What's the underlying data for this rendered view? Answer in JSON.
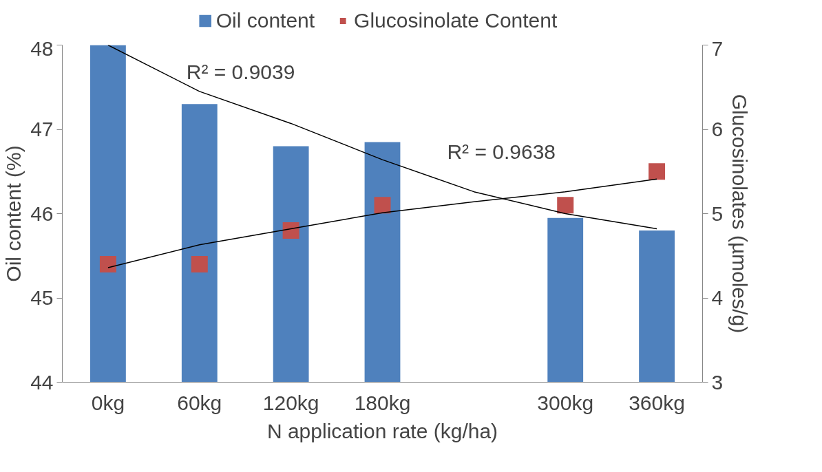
{
  "chart_data": {
    "type": "bar",
    "xlabel": "N application rate (kg/ha)",
    "ylabel": "Oil content (%)",
    "y2label": "Glucosinolates (µmoles/g)",
    "categories": [
      "0kg",
      "60kg",
      "120kg",
      "180kg",
      null,
      "300kg",
      "360kg"
    ],
    "series": [
      {
        "name": "Oil content",
        "color": "#4f81bd",
        "values": [
          48.0,
          47.3,
          46.8,
          46.85,
          null,
          45.95,
          45.8
        ]
      },
      {
        "name": "Glucosinolate Content",
        "type": "scatter",
        "axis": "y2",
        "marker": "square",
        "color": "#c0504d",
        "values": [
          4.4,
          4.4,
          4.8,
          5.1,
          null,
          5.1,
          5.5
        ]
      },
      {
        "type": "line",
        "color": "#000000",
        "values": [
          48.0,
          47.45,
          47.07,
          46.64,
          46.26,
          46.0,
          45.82
        ]
      },
      {
        "type": "line",
        "axis": "y2",
        "color": "#000000",
        "values": [
          4.36,
          4.63,
          4.82,
          5.01,
          5.14,
          5.26,
          5.41
        ]
      }
    ],
    "annotations": [
      "R² = 0.9039",
      "R² = 0.9638"
    ],
    "ylim": [
      44,
      48
    ],
    "yticks": [
      44,
      45,
      46,
      47,
      48
    ],
    "y2lim": [
      3,
      7
    ],
    "y2ticks": [
      3,
      4,
      5,
      6,
      7
    ],
    "grid": false,
    "legend": "top"
  }
}
